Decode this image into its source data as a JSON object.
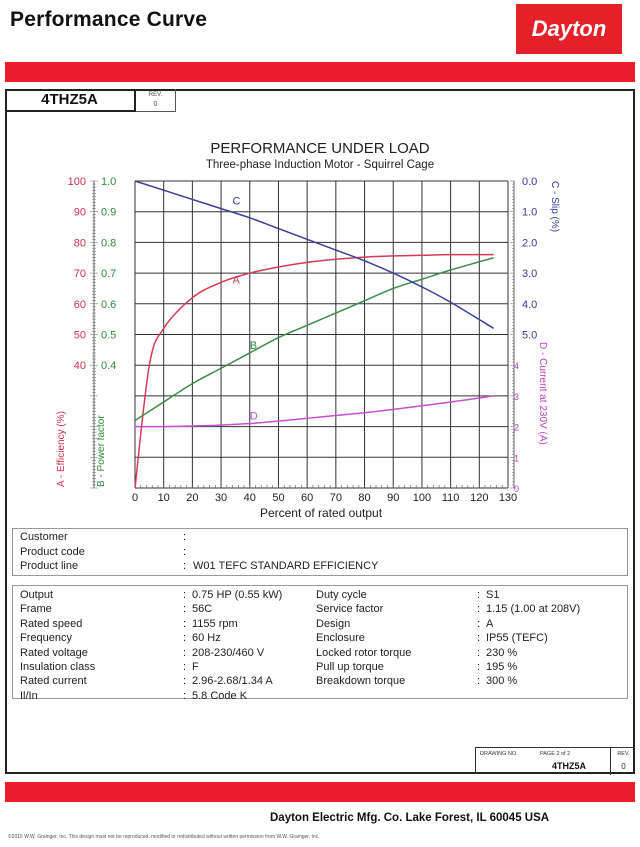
{
  "header": {
    "title": "Performance Curve",
    "logo_text": "Dayton",
    "brand_color": "#ec1c2d"
  },
  "model_box": {
    "model": "4THZ5A",
    "rev_label": "REV.",
    "rev_value": "0"
  },
  "chart_data": {
    "type": "line",
    "title": "PERFORMANCE UNDER LOAD",
    "subtitle": "Three-phase Induction Motor - Squirrel Cage",
    "xlabel": "Percent of rated output",
    "xlim": [
      0,
      130
    ],
    "x_ticks": [
      0,
      10,
      20,
      30,
      40,
      50,
      60,
      70,
      80,
      90,
      100,
      110,
      120,
      130
    ],
    "grid": true,
    "axes": {
      "left_outer": {
        "label": "A - Efficiency (%)",
        "ticks": [
          40,
          50,
          60,
          70,
          80,
          90,
          100
        ],
        "range": [
          0,
          100
        ],
        "color": "#d0304a"
      },
      "left_inner": {
        "label": "B - Power factor",
        "ticks": [
          0.4,
          0.5,
          0.6,
          0.7,
          0.8,
          0.9,
          1.0
        ],
        "range": [
          0,
          1.0
        ],
        "color": "#2f8a3a"
      },
      "right_upper": {
        "label": "C - Slip (%)",
        "ticks": [
          0.0,
          1.0,
          2.0,
          3.0,
          4.0,
          5.0
        ],
        "range": [
          0.0,
          5.0
        ],
        "inverted": true,
        "color": "#3a3a9a"
      },
      "right_lower": {
        "label": "D - Current at 230V (A)",
        "ticks": [
          0,
          1,
          2,
          3,
          4
        ],
        "range": [
          0,
          5
        ],
        "color": "#c040c8"
      }
    },
    "x": [
      0,
      5,
      10,
      20,
      30,
      40,
      50,
      60,
      70,
      80,
      90,
      100,
      110,
      125
    ],
    "series": [
      {
        "name": "A",
        "label": "A - Efficiency (%)",
        "color": "#d63a55",
        "values": [
          0,
          40,
          52,
          62,
          67,
          70,
          72,
          73.5,
          74.5,
          75.2,
          75.6,
          75.8,
          76,
          76
        ]
      },
      {
        "name": "B",
        "label": "B - Power factor",
        "color": "#3c8a48",
        "values": [
          0.22,
          0.25,
          0.28,
          0.34,
          0.39,
          0.44,
          0.49,
          0.53,
          0.57,
          0.61,
          0.65,
          0.68,
          0.71,
          0.75
        ]
      },
      {
        "name": "C",
        "label": "C - Slip (%)",
        "color": "#3b3f9c",
        "values": [
          0.0,
          0.15,
          0.3,
          0.6,
          0.9,
          1.2,
          1.55,
          1.9,
          2.25,
          2.6,
          3.0,
          3.45,
          3.95,
          4.8
        ]
      },
      {
        "name": "D",
        "label": "D - Current at 230V (A)",
        "color": "#c84fd0",
        "values": [
          2.0,
          2.0,
          2.0,
          2.02,
          2.05,
          2.1,
          2.18,
          2.27,
          2.36,
          2.45,
          2.56,
          2.68,
          2.8,
          3.0
        ]
      }
    ]
  },
  "customer_info": {
    "rows": [
      {
        "label": "Customer",
        "value": ""
      },
      {
        "label": "Product code",
        "value": ""
      },
      {
        "label": "Product line",
        "value": "W01 TEFC STANDARD  EFFICIENCY"
      }
    ]
  },
  "specs": {
    "left": [
      {
        "label": "Output",
        "value": "0.75 HP (0.55 kW)"
      },
      {
        "label": "Frame",
        "value": "56C"
      },
      {
        "label": "Rated speed",
        "value": "1155 rpm"
      },
      {
        "label": "Frequency",
        "value": "60 Hz"
      },
      {
        "label": "Rated voltage",
        "value": "208-230/460 V"
      },
      {
        "label": "Insulation class",
        "value": "F"
      },
      {
        "label": "Rated current",
        "value": "2.96-2.68/1.34 A"
      },
      {
        "label": "Il/In",
        "value": "5.8   Code K"
      }
    ],
    "right": [
      {
        "label": "Duty cycle",
        "value": "S1"
      },
      {
        "label": "Service factor",
        "value": "1.15   (1.00 at 208V)"
      },
      {
        "label": "Design",
        "value": "A"
      },
      {
        "label": "Enclosure",
        "value": "IP55 (TEFC)"
      },
      {
        "label": "Locked rotor torque",
        "value": "230 %"
      },
      {
        "label": "Pull up torque",
        "value": "195 %"
      },
      {
        "label": "Breakdown torque",
        "value": "300 %"
      }
    ]
  },
  "drawing_block": {
    "drawing_no_label": "DRAWING NO.",
    "page_label": "PAGE 2  of  2",
    "drawing_no": "4THZ5A",
    "rev_label": "REV.",
    "rev_value": "0"
  },
  "footer": {
    "company": "Dayton Electric Mfg. Co.  Lake Forest, IL  60045  USA",
    "copyright": "©2015 W.W. Grainger, Inc.   This design must not be reproduced, modified or redistributed without written permission from W.W. Grainger, Inc."
  }
}
